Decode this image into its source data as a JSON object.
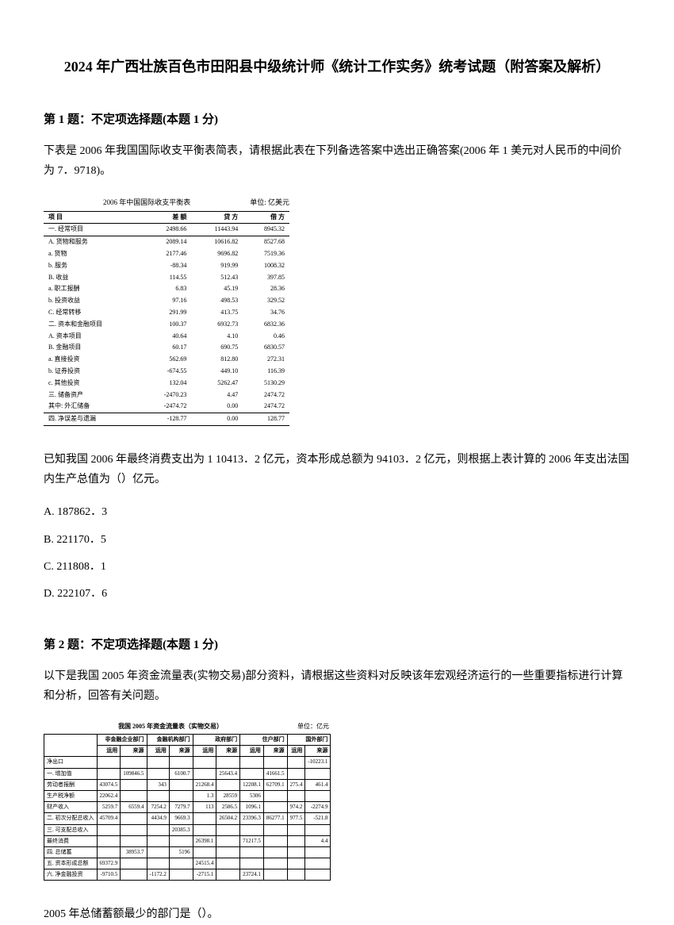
{
  "title": "2024 年广西壮族百色市田阳县中级统计师《统计工作实务》统考试题（附答案及解析）",
  "q1": {
    "header": "第 1 题：不定项选择题(本题 1 分)",
    "body": "下表是 2006 年我国国际收支平衡表简表，请根据此表在下列备选答案中选出正确答案(2006 年 1 美元对人民币的中间价为 7．9718)。",
    "tableCaption": "2006 年中国国际收支平衡表",
    "tableUnit": "单位: 亿美元",
    "columns": [
      "项  目",
      "差 额",
      "贷 方",
      "借 方"
    ],
    "rows": [
      [
        "一. 经常项目",
        "2498.66",
        "11443.94",
        "8945.32"
      ],
      [
        "  A. 货物和服务",
        "2089.14",
        "10616.82",
        "8527.68"
      ],
      [
        "    a. 货物",
        "2177.46",
        "9696.82",
        "7519.36"
      ],
      [
        "    b. 服务",
        "-88.34",
        "919.99",
        "1008.32"
      ],
      [
        "  B. 收益",
        "114.55",
        "512.43",
        "397.85"
      ],
      [
        "    a. 职工报酬",
        "6.83",
        "45.19",
        "28.36"
      ],
      [
        "    b. 投资收益",
        "97.16",
        "498.53",
        "329.52"
      ],
      [
        "  C. 经常转移",
        "291.99",
        "413.75",
        "34.76"
      ],
      [
        "二. 资本和金融项目",
        "100.37",
        "6932.73",
        "6832.36"
      ],
      [
        "  A. 资本项目",
        "40.64",
        "4.10",
        "0.46"
      ],
      [
        "  B. 金融项目",
        "60.17",
        "690.75",
        "6830.57"
      ],
      [
        "    a. 直接投资",
        "562.69",
        "812.80",
        "272.31"
      ],
      [
        "    b. 证券投资",
        "-674.55",
        "449.10",
        "116.39"
      ],
      [
        "    c. 其他投资",
        "132.04",
        "5262.47",
        "5130.29"
      ],
      [
        "三. 储备资产",
        "-2470.23",
        "4.47",
        "2474.72"
      ],
      [
        "  其中: 外汇储备",
        "-2474.72",
        "0.00",
        "2474.72"
      ],
      [
        "四. 净误差与遗漏",
        "-128.77",
        "0.00",
        "128.77"
      ]
    ],
    "afterTable": "已知我国 2006 年最终消费支出为 1 10413．2 亿元，资本形成总额为 94103．2 亿元，则根据上表计算的 2006 年支出法国内生产总值为（）亿元。",
    "options": [
      "A. 187862．3",
      "B. 221170．5",
      "C. 211808．1",
      "D. 222107．6"
    ]
  },
  "q2": {
    "header": "第 2 题：不定项选择题(本题 1 分)",
    "body": "以下是我国 2005 年资金流量表(实物交易)部分资料，请根据这些资料对反映该年宏观经济运行的一些重要指标进行计算和分析，回答有关问题。",
    "tableCaption": "我国 2005 年资金流量表（实物交易）",
    "tableUnit": "单位：亿元",
    "headerRow1": [
      "",
      "非金融企业部门",
      "金融机构部门",
      "政府部门",
      "住户部门",
      "国外部门"
    ],
    "headerRow2": [
      "",
      "运用",
      "来源",
      "运用",
      "来源",
      "运用",
      "来源",
      "运用",
      "来源",
      "运用",
      "来源"
    ],
    "rows": [
      [
        "净出口",
        "",
        "",
        "",
        "",
        "",
        "",
        "",
        "",
        "",
        "-10223.1"
      ],
      [
        "一. 增加值",
        "",
        "109846.5",
        "",
        "6100.7",
        "",
        "25643.4",
        "",
        "41661.5",
        "",
        ""
      ],
      [
        "  劳动者报酬",
        "43074.5",
        "",
        "343",
        "",
        "21268.4",
        "",
        "12208.1",
        "62709.1",
        "275.4",
        "461.4"
      ],
      [
        "  生产税净额",
        "22062.4",
        "",
        "",
        "",
        "1.3",
        "28559",
        "5306",
        "",
        "",
        ""
      ],
      [
        "  财产收入",
        "5259.7",
        "6559.4",
        "7254.2",
        "7279.7",
        "113",
        "2586.5",
        "1096.1",
        "",
        "974.2",
        "-2274.9"
      ],
      [
        "二. 初次分配总收入",
        "45709.4",
        "",
        "4434.9",
        "9669.3",
        "",
        "26504.2",
        "23396.3",
        "86277.1",
        "977.5",
        "-521.8"
      ],
      [
        "三. 可支配总收入",
        "",
        "",
        "",
        "20385.3",
        "",
        "",
        "",
        "",
        "",
        ""
      ],
      [
        "  最终消费",
        "",
        "",
        "",
        "",
        "26398.1",
        "",
        "71217.5",
        "",
        "",
        "4.4"
      ],
      [
        "四. 总储蓄",
        "",
        "38953.7",
        "",
        "5196",
        "",
        "",
        "",
        "",
        "",
        ""
      ],
      [
        "五. 资本形成总额",
        "69372.9",
        "",
        "",
        "",
        "24515.4",
        "",
        "",
        "",
        "",
        ""
      ],
      [
        "六. 净金融投资",
        "-9710.5",
        "",
        "-1172.2",
        "",
        "-2715.1",
        "",
        "23724.1",
        "",
        "",
        ""
      ]
    ],
    "afterTable": "2005 年总储蓄额最少的部门是（）。"
  }
}
